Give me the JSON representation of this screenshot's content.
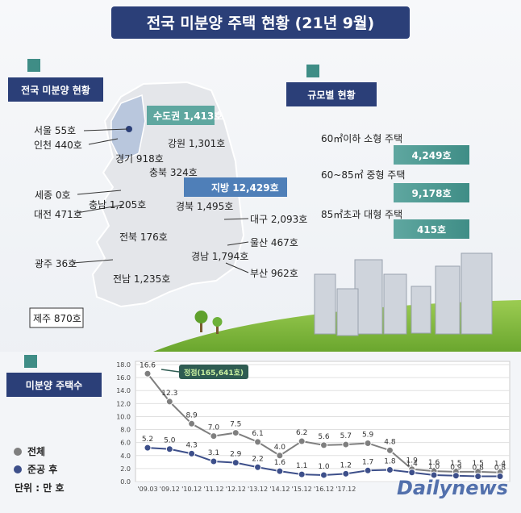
{
  "title": "전국 미분양 주택 현황 (21년 9월)",
  "map": {
    "heading": "전국 미분양 현황",
    "capital_total": "수도권 1,413호",
    "local_total": "지방 12,429호",
    "regions": [
      "서울 55호",
      "인천 440호",
      "경기 918호",
      "강원 1,301호",
      "충북 324호",
      "세종 0호",
      "충남 1,205호",
      "대전 471호",
      "경북 1,495호",
      "대구 2,093호",
      "전북 176호",
      "울산 467호",
      "광주 36호",
      "경남 1,794호",
      "부산 962호",
      "전남 1,235호",
      "제주 870호"
    ]
  },
  "size": {
    "heading": "규모별 현황",
    "items": [
      {
        "label": "60㎡이하 소형 주택",
        "value": "4,249호"
      },
      {
        "label": "60~85㎡ 중형 주택",
        "value": "9,178호"
      },
      {
        "label": "85㎡초과 대형 주택",
        "value": "415호"
      }
    ]
  },
  "watermark": "Dailynews",
  "chart_data": {
    "type": "line",
    "title": "미분양 주택수",
    "unit": "단위 : 만 호",
    "annotation": "정점(165,641호)",
    "categories": [
      "'09.03",
      "'09.12",
      "'10.12",
      "'11.12",
      "'12.12",
      "'13.12",
      "'14.12",
      "'15.12",
      "'16.12",
      "'17.12",
      null,
      null,
      null,
      null,
      null,
      null,
      null
    ],
    "series": [
      {
        "name": "전체",
        "color": "#7f7f7f",
        "values": [
          16.6,
          12.3,
          8.9,
          7.0,
          7.5,
          6.1,
          4.0,
          6.2,
          5.6,
          5.7,
          5.9,
          4.8,
          1.9,
          1.6,
          1.5,
          1.5,
          1.4
        ],
        "value_labels": [
          "16.6",
          "12.3",
          "8.9",
          "7.0",
          "7.5",
          "6.1",
          "4.0",
          "6.2",
          "5.6",
          "5.7",
          "5.9",
          "4.8",
          "1.9",
          "1.6",
          "1.5",
          "1.5",
          "1.4"
        ]
      },
      {
        "name": "준공 후",
        "color": "#3d4f8a",
        "values": [
          5.2,
          5.0,
          4.3,
          3.1,
          2.9,
          2.2,
          1.6,
          1.1,
          1.0,
          1.2,
          1.7,
          1.8,
          1.4,
          1.0,
          0.9,
          0.8,
          0.8
        ],
        "value_labels": [
          "5.2",
          "5.0",
          "4.3",
          "3.1",
          "2.9",
          "2.2",
          "1.6",
          "1.1",
          "1.0",
          "1.2",
          "1.7",
          "1.8",
          "1.4",
          "1.0",
          "0.9",
          "0.8",
          "0.8"
        ]
      }
    ],
    "ylim": [
      0,
      18
    ],
    "yticks": [
      {
        "value": 0,
        "label": "0.0"
      },
      {
        "value": 2,
        "label": "2.0"
      },
      {
        "value": 4,
        "label": "4.0"
      },
      {
        "value": 6,
        "label": "6.0"
      },
      {
        "value": 8,
        "label": "8.0"
      },
      {
        "value": 10,
        "label": "10.0"
      },
      {
        "value": 12,
        "label": "12.0"
      },
      {
        "value": 14,
        "label": "14.0"
      },
      {
        "value": 16,
        "label": "16.0"
      },
      {
        "value": 18,
        "label": "18.0"
      }
    ],
    "grid": true
  }
}
